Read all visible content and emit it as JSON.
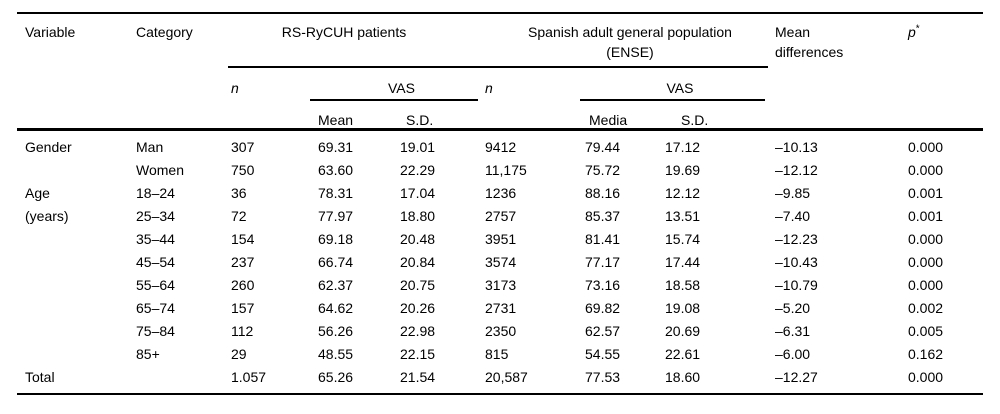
{
  "table": {
    "colors": {
      "text": "#000000",
      "background": "#ffffff",
      "rule": "#000000"
    },
    "headers": {
      "variable": "Variable",
      "category": "Category",
      "n": "n",
      "vas": "VAS",
      "mean": "Mean",
      "sd": "S.D.",
      "media": "Media",
      "mean_diff_line1": "Mean",
      "mean_diff_line2": "differences",
      "p": "p",
      "p_sup": "*"
    },
    "groups": {
      "rs_patients": "RS-RyCUH patients",
      "ense_line1": "Spanish adult general population",
      "ense_line2": "(ENSE)"
    },
    "rows": [
      [
        "Gender",
        "Man",
        "307",
        "69.31",
        "19.01",
        "9412",
        "79.44",
        "17.12",
        "–10.13",
        "0.000"
      ],
      [
        "",
        "Women",
        "750",
        "63.60",
        "22.29",
        "11,175",
        "75.72",
        "19.69",
        "–12.12",
        "0.000"
      ],
      [
        "Age",
        "18–24",
        "36",
        "78.31",
        "17.04",
        "1236",
        "88.16",
        "12.12",
        "–9.85",
        "0.001"
      ],
      [
        "(years)",
        "25–34",
        "72",
        "77.97",
        "18.80",
        "2757",
        "85.37",
        "13.51",
        "–7.40",
        "0.001"
      ],
      [
        "",
        "35–44",
        "154",
        "69.18",
        "20.48",
        "3951",
        "81.41",
        "15.74",
        "–12.23",
        "0.000"
      ],
      [
        "",
        "45–54",
        "237",
        "66.74",
        "20.84",
        "3574",
        "77.17",
        "17.44",
        "–10.43",
        "0.000"
      ],
      [
        "",
        "55–64",
        "260",
        "62.37",
        "20.75",
        "3173",
        "73.16",
        "18.58",
        "–10.79",
        "0.000"
      ],
      [
        "",
        "65–74",
        "157",
        "64.62",
        "20.26",
        "2731",
        "69.82",
        "19.08",
        "–5.20",
        "0.002"
      ],
      [
        "",
        "75–84",
        "112",
        "56.26",
        "22.98",
        "2350",
        "62.57",
        "20.69",
        "–6.31",
        "0.005"
      ],
      [
        "",
        "85+",
        "29",
        "48.55",
        "22.15",
        "815",
        "54.55",
        "22.61",
        "–6.00",
        "0.162"
      ],
      [
        "Total",
        "",
        "1.057",
        "65.26",
        "21.54",
        "20,587",
        "77.53",
        "18.60",
        "–12.27",
        "0.000"
      ]
    ]
  }
}
